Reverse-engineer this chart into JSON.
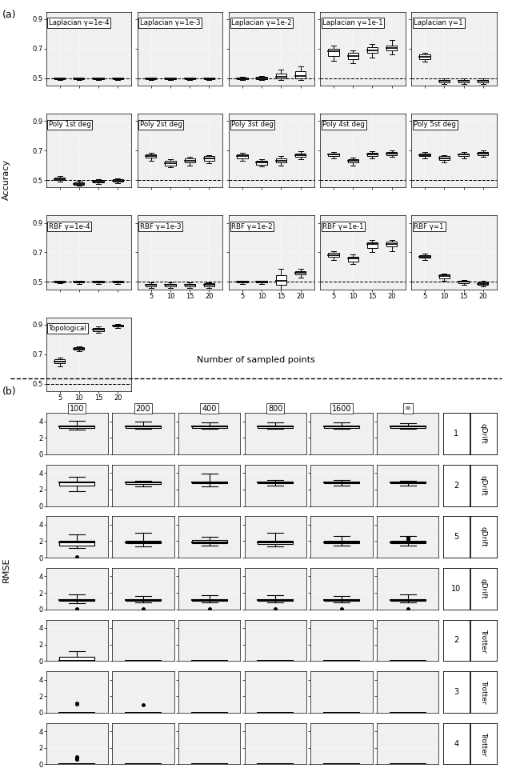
{
  "panel_a": {
    "row1_titles": [
      "Laplacian γ=1e-4",
      "Laplacian γ=1e-3",
      "Laplacian γ=1e-2",
      "Laplacian γ=1e-1",
      "Laplacian γ=1"
    ],
    "row2_titles": [
      "Poly 1st deg",
      "Poly 2st deg",
      "Poly 3st deg",
      "Poly 4st deg",
      "Poly 5st deg"
    ],
    "row3_titles": [
      "RBF γ=1e-4",
      "RBF γ=1e-3",
      "RBF γ=1e-2",
      "RBF γ=1e-1",
      "RBF γ=1"
    ],
    "row4_titles": [
      "Topological"
    ],
    "x_ticks": [
      5,
      10,
      15,
      20
    ],
    "ylim": [
      0.45,
      0.95
    ],
    "yticks": [
      0.5,
      0.7,
      0.9
    ],
    "dashed_y": 0.5,
    "xlabel": "Number of sampled points",
    "ylabel": "Accuracy",
    "row1_data": {
      "Laplacian g=1e-4": {
        "5": [
          0.49,
          0.495,
          0.5,
          0.5,
          0.5
        ],
        "10": [
          0.49,
          0.495,
          0.5,
          0.5,
          0.5
        ],
        "15": [
          0.49,
          0.495,
          0.5,
          0.5,
          0.5
        ],
        "20": [
          0.49,
          0.495,
          0.5,
          0.5,
          0.5
        ]
      },
      "Laplacian g=1e-3": {
        "5": [
          0.49,
          0.495,
          0.5,
          0.5,
          0.5
        ],
        "10": [
          0.49,
          0.495,
          0.5,
          0.5,
          0.5
        ],
        "15": [
          0.49,
          0.495,
          0.5,
          0.5,
          0.5
        ],
        "20": [
          0.49,
          0.495,
          0.5,
          0.5,
          0.5
        ]
      },
      "Laplacian g=1e-2": {
        "5": [
          0.49,
          0.495,
          0.5,
          0.505,
          0.51
        ],
        "10": [
          0.49,
          0.495,
          0.5,
          0.51,
          0.515
        ],
        "15": [
          0.49,
          0.5,
          0.51,
          0.53,
          0.56
        ],
        "20": [
          0.49,
          0.5,
          0.515,
          0.545,
          0.58
        ]
      },
      "Laplacian g=1e-1": {
        "5": [
          0.62,
          0.65,
          0.68,
          0.7,
          0.72
        ],
        "10": [
          0.6,
          0.63,
          0.65,
          0.67,
          0.69
        ],
        "15": [
          0.64,
          0.67,
          0.69,
          0.71,
          0.73
        ],
        "20": [
          0.66,
          0.69,
          0.705,
          0.72,
          0.76
        ]
      },
      "Laplacian g=1": {
        "5": [
          0.61,
          0.63,
          0.645,
          0.66,
          0.67
        ],
        "10": [
          0.46,
          0.47,
          0.48,
          0.49,
          0.5
        ],
        "15": [
          0.46,
          0.47,
          0.48,
          0.49,
          0.5
        ],
        "20": [
          0.46,
          0.47,
          0.48,
          0.49,
          0.5
        ]
      }
    },
    "row2_data": {
      "Poly 1st deg": {
        "5": [
          0.49,
          0.498,
          0.505,
          0.515,
          0.525
        ],
        "10": [
          0.46,
          0.468,
          0.475,
          0.485,
          0.492
        ],
        "15": [
          0.475,
          0.482,
          0.49,
          0.498,
          0.505
        ],
        "20": [
          0.48,
          0.488,
          0.495,
          0.503,
          0.51
        ]
      },
      "Poly 2st deg": {
        "5": [
          0.63,
          0.65,
          0.665,
          0.675,
          0.685
        ],
        "10": [
          0.585,
          0.6,
          0.615,
          0.63,
          0.64
        ],
        "15": [
          0.6,
          0.618,
          0.63,
          0.645,
          0.655
        ],
        "20": [
          0.615,
          0.63,
          0.645,
          0.66,
          0.67
        ]
      },
      "Poly 3st deg": {
        "5": [
          0.63,
          0.648,
          0.662,
          0.675,
          0.685
        ],
        "10": [
          0.59,
          0.605,
          0.618,
          0.63,
          0.64
        ],
        "15": [
          0.6,
          0.618,
          0.63,
          0.645,
          0.66
        ],
        "20": [
          0.64,
          0.658,
          0.67,
          0.68,
          0.695
        ]
      },
      "Poly 4st deg": {
        "5": [
          0.645,
          0.66,
          0.672,
          0.68,
          0.688
        ],
        "10": [
          0.6,
          0.618,
          0.63,
          0.64,
          0.65
        ],
        "15": [
          0.645,
          0.66,
          0.672,
          0.682,
          0.695
        ],
        "20": [
          0.655,
          0.668,
          0.68,
          0.69,
          0.7
        ]
      },
      "Poly 5st deg": {
        "5": [
          0.645,
          0.66,
          0.67,
          0.68,
          0.688
        ],
        "10": [
          0.62,
          0.635,
          0.648,
          0.66,
          0.668
        ],
        "15": [
          0.648,
          0.66,
          0.672,
          0.68,
          0.688
        ],
        "20": [
          0.655,
          0.668,
          0.678,
          0.688,
          0.7
        ]
      }
    },
    "row3_data": {
      "RBF g=1e-4": {
        "5": [
          0.49,
          0.495,
          0.5,
          0.502,
          0.505
        ],
        "10": [
          0.488,
          0.494,
          0.5,
          0.502,
          0.505
        ],
        "15": [
          0.488,
          0.494,
          0.5,
          0.502,
          0.505
        ],
        "20": [
          0.488,
          0.494,
          0.5,
          0.502,
          0.505
        ]
      },
      "RBF g=1e-3": {
        "5": [
          0.46,
          0.47,
          0.48,
          0.488,
          0.495
        ],
        "10": [
          0.46,
          0.47,
          0.48,
          0.488,
          0.495
        ],
        "15": [
          0.46,
          0.47,
          0.48,
          0.488,
          0.495
        ],
        "20": [
          0.46,
          0.47,
          0.48,
          0.49,
          0.498
        ]
      },
      "RBF g=1e-2": {
        "5": [
          0.488,
          0.495,
          0.5,
          0.505,
          0.51
        ],
        "10": [
          0.488,
          0.495,
          0.5,
          0.505,
          0.51
        ],
        "15": [
          0.45,
          0.48,
          0.508,
          0.545,
          0.59
        ],
        "20": [
          0.53,
          0.548,
          0.562,
          0.575,
          0.588
        ]
      },
      "RBF g=1e-1": {
        "5": [
          0.65,
          0.668,
          0.682,
          0.695,
          0.71
        ],
        "10": [
          0.62,
          0.64,
          0.658,
          0.672,
          0.685
        ],
        "15": [
          0.7,
          0.73,
          0.755,
          0.77,
          0.785
        ],
        "20": [
          0.71,
          0.738,
          0.758,
          0.772,
          0.785
        ]
      },
      "RBF g=1": {
        "5": [
          0.648,
          0.662,
          0.672,
          0.682,
          0.692
        ],
        "10": [
          0.51,
          0.525,
          0.538,
          0.548,
          0.558
        ],
        "15": [
          0.48,
          0.49,
          0.5,
          0.508,
          0.515
        ],
        "20": [
          0.468,
          0.478,
          0.488,
          0.498,
          0.505
        ]
      }
    },
    "row4_data": {
      "Topological": {
        "5": [
          0.62,
          0.638,
          0.652,
          0.665,
          0.675
        ],
        "10": [
          0.718,
          0.73,
          0.738,
          0.745,
          0.752
        ],
        "15": [
          0.845,
          0.858,
          0.868,
          0.878,
          0.888
        ],
        "20": [
          0.878,
          0.888,
          0.895,
          0.9,
          0.906
        ]
      }
    }
  },
  "panel_b": {
    "col_titles": [
      "100",
      "200",
      "400",
      "800",
      "1600",
      "∞"
    ],
    "row_labels_num": [
      "1",
      "2",
      "5",
      "10",
      "2",
      "3",
      "4"
    ],
    "row_labels_type": [
      "qDrift",
      "qDrift",
      "qDrift",
      "qDrift",
      "Trotter",
      "Trotter",
      "Trotter"
    ],
    "ylim": [
      0,
      5
    ],
    "yticks": [
      0,
      2,
      4
    ],
    "ylabel": "RMSE",
    "data": {
      "qDrift_1": {
        "100": [
          3.0,
          3.2,
          3.35,
          3.5,
          4.1
        ],
        "200": [
          3.1,
          3.2,
          3.35,
          3.5,
          4.0
        ],
        "400": [
          3.1,
          3.2,
          3.35,
          3.48,
          3.9
        ],
        "800": [
          3.1,
          3.22,
          3.35,
          3.48,
          3.85
        ],
        "1600": [
          3.1,
          3.22,
          3.35,
          3.48,
          3.85
        ],
        "inf": [
          3.1,
          3.22,
          3.35,
          3.48,
          3.82
        ]
      },
      "qDrift_2": {
        "100": [
          1.8,
          2.5,
          2.85,
          3.0,
          3.5
        ],
        "200": [
          2.4,
          2.7,
          2.82,
          2.95,
          3.1
        ],
        "400": [
          2.4,
          2.72,
          2.85,
          3.0,
          3.9
        ],
        "800": [
          2.5,
          2.72,
          2.85,
          2.98,
          3.15
        ],
        "1600": [
          2.5,
          2.72,
          2.85,
          2.98,
          3.12
        ],
        "inf": [
          2.52,
          2.72,
          2.85,
          2.98,
          3.1
        ]
      },
      "qDrift_5": {
        "100": [
          1.2,
          1.5,
          1.85,
          2.0,
          2.8
        ],
        "200": [
          1.4,
          1.72,
          1.85,
          2.05,
          3.0
        ],
        "400": [
          1.5,
          1.72,
          1.85,
          2.1,
          2.5
        ],
        "800": [
          1.35,
          1.68,
          1.82,
          2.0,
          3.0
        ],
        "1600": [
          1.5,
          1.72,
          1.85,
          2.0,
          2.6
        ],
        "inf": [
          1.45,
          1.72,
          1.82,
          2.0,
          2.6
        ]
      },
      "qDrift_5_outliers": {
        "100": [
          0.08
        ],
        "200": [],
        "400": [],
        "800": [],
        "1600": [],
        "inf": [
          2.2,
          2.3,
          2.4
        ]
      },
      "qDrift_10": {
        "100": [
          0.75,
          1.0,
          1.1,
          1.2,
          1.8
        ],
        "200": [
          0.82,
          1.02,
          1.12,
          1.22,
          1.58
        ],
        "400": [
          0.82,
          1.02,
          1.12,
          1.22,
          1.72
        ],
        "800": [
          0.82,
          1.02,
          1.12,
          1.22,
          1.68
        ],
        "1600": [
          0.82,
          1.02,
          1.12,
          1.22,
          1.62
        ],
        "inf": [
          0.85,
          1.02,
          1.12,
          1.22,
          1.85
        ]
      },
      "qDrift_10_outliers": {
        "100": [
          0.08
        ],
        "200": [
          0.08
        ],
        "400": [
          0.08
        ],
        "800": [
          0.08
        ],
        "1600": [
          0.08
        ],
        "inf": [
          0.08
        ]
      },
      "Trotter_2": {
        "100": [
          0.0,
          0.02,
          0.05,
          0.5,
          1.2
        ],
        "200": [
          0.0,
          0.005,
          0.01,
          0.015,
          0.02
        ],
        "400": [
          0.0,
          0.005,
          0.01,
          0.015,
          0.02
        ],
        "800": [
          0.0,
          0.005,
          0.01,
          0.015,
          0.02
        ],
        "1600": [
          0.0,
          0.005,
          0.01,
          0.015,
          0.02
        ],
        "inf": [
          0.0,
          0.005,
          0.01,
          0.015,
          0.02
        ]
      },
      "Trotter_3": {
        "100": [
          0.0,
          0.005,
          0.01,
          0.015,
          0.02
        ],
        "200": [
          0.0,
          0.005,
          0.01,
          0.015,
          0.02
        ],
        "400": [
          0.0,
          0.005,
          0.01,
          0.015,
          0.02
        ],
        "800": [
          0.0,
          0.005,
          0.01,
          0.015,
          0.02
        ],
        "1600": [
          0.0,
          0.005,
          0.01,
          0.015,
          0.02
        ],
        "inf": [
          0.0,
          0.005,
          0.01,
          0.015,
          0.02
        ]
      },
      "Trotter_3_outliers": {
        "100": [
          1.1,
          1.2
        ],
        "200": [
          1.0
        ],
        "400": [],
        "800": [],
        "1600": [],
        "inf": []
      },
      "Trotter_4": {
        "100": [
          0.0,
          0.005,
          0.01,
          0.015,
          0.02
        ],
        "200": [
          0.0,
          0.005,
          0.01,
          0.015,
          0.02
        ],
        "400": [
          0.0,
          0.005,
          0.01,
          0.015,
          0.02
        ],
        "800": [
          0.0,
          0.005,
          0.01,
          0.015,
          0.02
        ],
        "1600": [
          0.0,
          0.005,
          0.01,
          0.015,
          0.02
        ],
        "inf": [
          0.0,
          0.005,
          0.01,
          0.015,
          0.02
        ]
      },
      "Trotter_4_outliers": {
        "100": [
          0.6,
          0.65,
          0.75,
          0.85,
          0.9
        ],
        "200": [],
        "400": [],
        "800": [],
        "1600": [],
        "inf": []
      }
    }
  },
  "bg_color": "#f0f0f0",
  "box_facecolor": "white",
  "box_edgecolor": "black",
  "median_color": "black",
  "whisker_color": "black",
  "flier_color": "black"
}
